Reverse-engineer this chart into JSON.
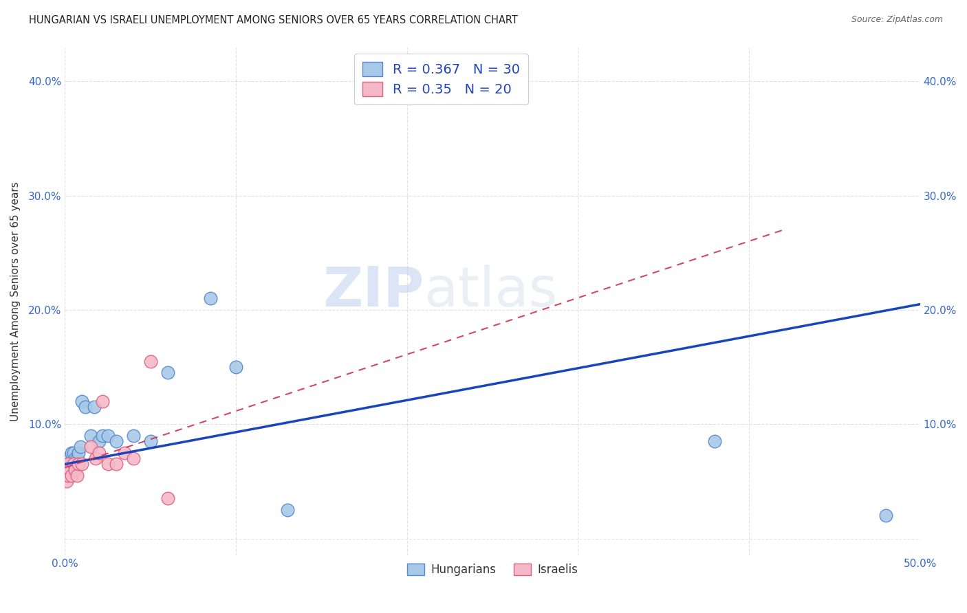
{
  "title": "HUNGARIAN VS ISRAELI UNEMPLOYMENT AMONG SENIORS OVER 65 YEARS CORRELATION CHART",
  "source": "Source: ZipAtlas.com",
  "ylabel": "Unemployment Among Seniors over 65 years",
  "xlim": [
    0.0,
    0.5
  ],
  "ylim": [
    -0.015,
    0.43
  ],
  "xticks": [
    0.0,
    0.1,
    0.2,
    0.3,
    0.4,
    0.5
  ],
  "yticks": [
    0.0,
    0.1,
    0.2,
    0.3,
    0.4
  ],
  "xtick_labels": [
    "0.0%",
    "",
    "",
    "",
    "",
    "50.0%"
  ],
  "ytick_labels_left": [
    "",
    "10.0%",
    "20.0%",
    "30.0%",
    "40.0%"
  ],
  "ytick_labels_right": [
    "",
    "10.0%",
    "20.0%",
    "30.0%",
    "40.0%"
  ],
  "hungarian_color": "#a8c8e8",
  "hungarian_edge": "#5588cc",
  "israeli_color": "#f4b8c8",
  "israeli_edge": "#e06080",
  "line_blue": "#1a44bb",
  "line_red": "#cc3355",
  "R_hungarian": 0.367,
  "N_hungarian": 30,
  "R_israeli": 0.35,
  "N_israeli": 20,
  "hungarian_x": [
    0.001,
    0.001,
    0.002,
    0.002,
    0.003,
    0.003,
    0.004,
    0.004,
    0.005,
    0.005,
    0.006,
    0.007,
    0.008,
    0.009,
    0.01,
    0.012,
    0.015,
    0.017,
    0.02,
    0.022,
    0.025,
    0.03,
    0.04,
    0.05,
    0.06,
    0.085,
    0.1,
    0.13,
    0.38,
    0.48
  ],
  "hungarian_y": [
    0.055,
    0.065,
    0.06,
    0.07,
    0.06,
    0.07,
    0.065,
    0.075,
    0.065,
    0.075,
    0.07,
    0.07,
    0.075,
    0.08,
    0.12,
    0.115,
    0.09,
    0.115,
    0.085,
    0.09,
    0.09,
    0.085,
    0.09,
    0.085,
    0.145,
    0.21,
    0.15,
    0.025,
    0.085,
    0.02
  ],
  "israeli_x": [
    0.001,
    0.002,
    0.002,
    0.003,
    0.004,
    0.005,
    0.006,
    0.007,
    0.008,
    0.01,
    0.015,
    0.018,
    0.02,
    0.022,
    0.025,
    0.03,
    0.035,
    0.04,
    0.05,
    0.06
  ],
  "israeli_y": [
    0.05,
    0.055,
    0.065,
    0.06,
    0.055,
    0.065,
    0.06,
    0.055,
    0.065,
    0.065,
    0.08,
    0.07,
    0.075,
    0.12,
    0.065,
    0.065,
    0.075,
    0.07,
    0.155,
    0.035
  ],
  "watermark_zip": "ZIP",
  "watermark_atlas": "atlas",
  "background_color": "#ffffff",
  "grid_color": "#cccccc",
  "hungarian_line_x0": 0.0,
  "hungarian_line_x1": 0.5,
  "hungarian_line_y0": 0.065,
  "hungarian_line_y1": 0.205,
  "israeli_line_x0": 0.0,
  "israeli_line_x1": 0.42,
  "israeli_line_y0": 0.062,
  "israeli_line_y1": 0.27
}
